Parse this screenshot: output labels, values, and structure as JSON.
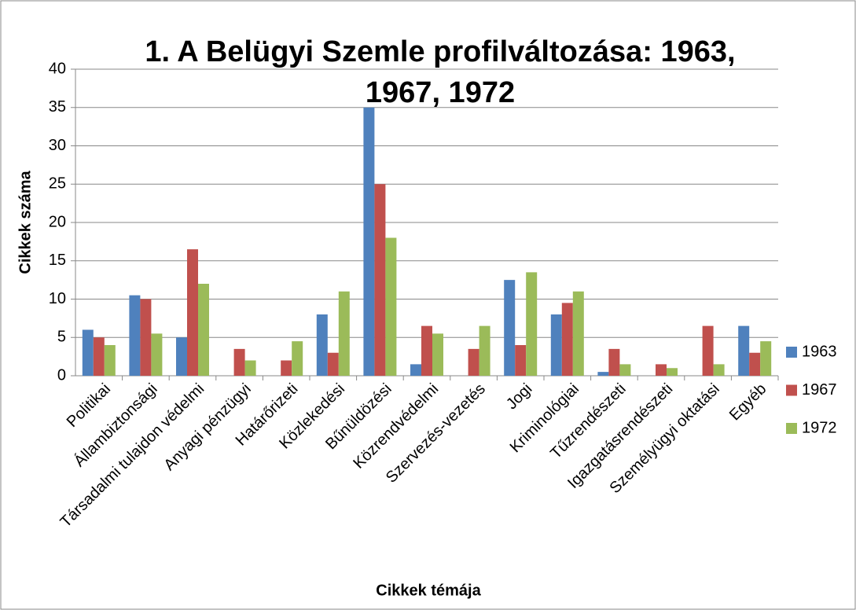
{
  "chart_data": {
    "type": "bar",
    "title": "1. A Belügyi Szemle profilváltozása: 1963, 1967, 1972",
    "xlabel": "Cikkek témája",
    "ylabel": "Cikkek száma",
    "categories": [
      "Politikai",
      "Állambiztonsági",
      "Társadalmi tulajdon védelmi",
      "Anyagi pénzügyi",
      "Határőrizeti",
      "Közlekedési",
      "Bűnüldözési",
      "Közrendvédelmi",
      "Szervezés-vezetés",
      "Jogi",
      "Kriminológiai",
      "Tűzrendészeti",
      "Igazgatásrendészeti",
      "Személyügyi oktatási",
      "Egyéb"
    ],
    "series": [
      {
        "name": "1963",
        "color": "#4f81bd",
        "values": [
          6,
          10.5,
          5,
          0,
          0,
          8,
          35,
          1.5,
          0,
          12.5,
          8,
          0.5,
          0,
          0,
          6.5
        ]
      },
      {
        "name": "1967",
        "color": "#c0504d",
        "values": [
          5,
          10,
          16.5,
          3.5,
          2,
          3,
          25,
          6.5,
          3.5,
          4,
          9.5,
          3.5,
          1.5,
          6.5,
          3
        ]
      },
      {
        "name": "1972",
        "color": "#9bbb59",
        "values": [
          4,
          5.5,
          12,
          2,
          4.5,
          11,
          18,
          5.5,
          6.5,
          13.5,
          11,
          1.5,
          1,
          1.5,
          4.5
        ]
      }
    ],
    "ylim": [
      0,
      40
    ],
    "yticks": [
      0,
      5,
      10,
      15,
      20,
      25,
      30,
      35,
      40
    ],
    "grid": true,
    "legend": "right"
  }
}
